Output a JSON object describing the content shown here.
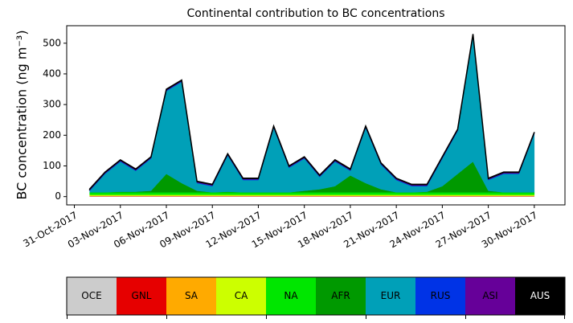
{
  "chart_data": {
    "type": "stacked_area",
    "title": "Continental contribution to BC concentrations",
    "ylabel": "BC concentration (ng m⁻³)",
    "x": [
      "2017-11-01",
      "2017-11-02",
      "2017-11-03",
      "2017-11-04",
      "2017-11-05",
      "2017-11-06",
      "2017-11-07",
      "2017-11-08",
      "2017-11-09",
      "2017-11-10",
      "2017-11-11",
      "2017-11-12",
      "2017-11-13",
      "2017-11-14",
      "2017-11-15",
      "2017-11-16",
      "2017-11-17",
      "2017-11-18",
      "2017-11-19",
      "2017-11-20",
      "2017-11-21",
      "2017-11-22",
      "2017-11-23",
      "2017-11-24",
      "2017-11-25",
      "2017-11-26",
      "2017-11-27",
      "2017-11-28",
      "2017-11-29",
      "2017-11-30"
    ],
    "xlim": [
      "2017-10-30T12:00",
      "2017-12-02T00:00"
    ],
    "xticks": [
      {
        "value": "2017-10-31",
        "label": "31-Oct-2017"
      },
      {
        "value": "2017-11-03",
        "label": "03-Nov-2017"
      },
      {
        "value": "2017-11-06",
        "label": "06-Nov-2017"
      },
      {
        "value": "2017-11-09",
        "label": "09-Nov-2017"
      },
      {
        "value": "2017-11-12",
        "label": "12-Nov-2017"
      },
      {
        "value": "2017-11-15",
        "label": "15-Nov-2017"
      },
      {
        "value": "2017-11-18",
        "label": "18-Nov-2017"
      },
      {
        "value": "2017-11-21",
        "label": "21-Nov-2017"
      },
      {
        "value": "2017-11-24",
        "label": "24-Nov-2017"
      },
      {
        "value": "2017-11-27",
        "label": "27-Nov-2017"
      },
      {
        "value": "2017-11-30",
        "label": "30-Nov-2017"
      }
    ],
    "ylim": [
      -27,
      557
    ],
    "yticks": [
      0,
      100,
      200,
      300,
      400,
      500
    ],
    "series": [
      {
        "name": "OCE",
        "color": "#cccccc",
        "values": [
          1,
          1,
          1,
          1,
          1,
          1,
          1,
          1,
          1,
          1,
          1,
          1,
          1,
          1,
          1,
          1,
          1,
          1,
          1,
          1,
          1,
          1,
          1,
          1,
          1,
          1,
          1,
          1,
          1,
          1
        ]
      },
      {
        "name": "GNL",
        "color": "#e60000",
        "values": [
          1,
          1,
          1,
          1,
          1,
          1,
          1,
          1,
          1,
          1,
          1,
          1,
          1,
          1,
          1,
          1,
          1,
          1,
          1,
          1,
          1,
          1,
          1,
          1,
          1,
          1,
          1,
          1,
          1,
          1
        ]
      },
      {
        "name": "SA",
        "color": "#ffaa00",
        "values": [
          1,
          1,
          1,
          1,
          1,
          1,
          1,
          1,
          1,
          1,
          1,
          1,
          1,
          1,
          1,
          1,
          1,
          1,
          1,
          1,
          1,
          1,
          1,
          1,
          1,
          1,
          1,
          1,
          1,
          1
        ]
      },
      {
        "name": "CA",
        "color": "#ccff00",
        "values": [
          3,
          3,
          3,
          3,
          3,
          3,
          3,
          3,
          3,
          3,
          3,
          3,
          3,
          3,
          3,
          3,
          3,
          3,
          3,
          3,
          3,
          3,
          3,
          3,
          3,
          3,
          3,
          3,
          3,
          3
        ]
      },
      {
        "name": "NA",
        "color": "#00e600",
        "values": [
          8,
          8,
          8,
          8,
          8,
          8,
          8,
          8,
          8,
          8,
          8,
          8,
          8,
          8,
          8,
          8,
          8,
          8,
          8,
          8,
          8,
          8,
          8,
          8,
          8,
          8,
          8,
          8,
          8,
          8
        ]
      },
      {
        "name": "AFR",
        "color": "#009900",
        "values": [
          0,
          0,
          2,
          2,
          5,
          60,
          30,
          5,
          0,
          2,
          0,
          0,
          0,
          0,
          5,
          10,
          20,
          55,
          30,
          10,
          0,
          0,
          2,
          20,
          60,
          100,
          5,
          0,
          0,
          0
        ]
      },
      {
        "name": "EUR",
        "color": "#00a0b8",
        "values": [
          5,
          60,
          98,
          68,
          105,
          270,
          330,
          25,
          20,
          118,
          40,
          40,
          210,
          80,
          105,
          40,
          80,
          15,
          180,
          80,
          40,
          20,
          18,
          90,
          140,
          410,
          35,
          60,
          60,
          190
        ]
      },
      {
        "name": "RUS",
        "color": "#0033e6",
        "values": [
          2,
          2,
          2,
          2,
          2,
          2,
          2,
          2,
          2,
          2,
          2,
          2,
          2,
          2,
          2,
          2,
          2,
          2,
          2,
          2,
          2,
          2,
          2,
          2,
          2,
          2,
          2,
          2,
          2,
          2
        ]
      },
      {
        "name": "ASI",
        "color": "#660099",
        "values": [
          3,
          3,
          3,
          3,
          3,
          3,
          3,
          3,
          3,
          3,
          3,
          3,
          3,
          3,
          3,
          3,
          3,
          3,
          3,
          3,
          3,
          3,
          3,
          3,
          3,
          3,
          3,
          3,
          3,
          3
        ]
      },
      {
        "name": "AUS",
        "color": "#000000",
        "values": [
          1,
          1,
          1,
          1,
          1,
          1,
          1,
          1,
          1,
          1,
          1,
          1,
          1,
          1,
          1,
          1,
          1,
          1,
          1,
          1,
          1,
          1,
          1,
          1,
          1,
          1,
          1,
          1,
          1,
          1
        ]
      }
    ]
  }
}
